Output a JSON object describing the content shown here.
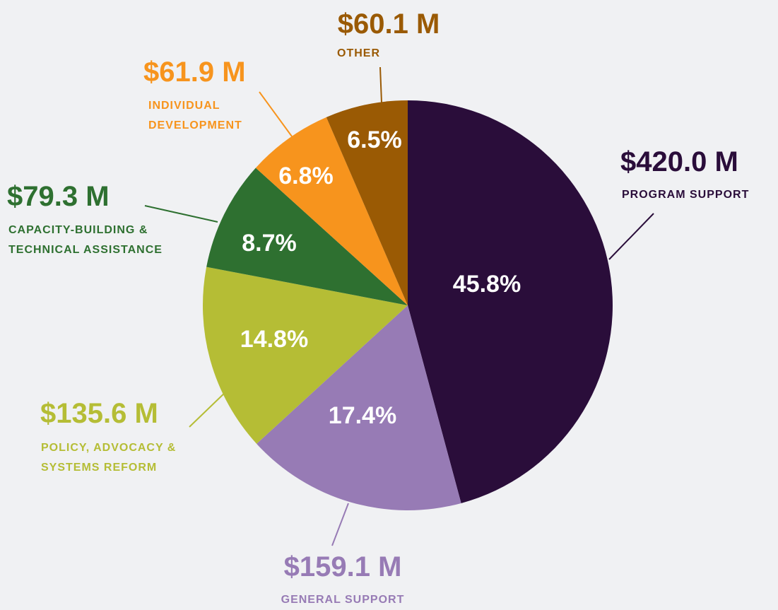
{
  "chart_data": {
    "type": "pie",
    "categories": [
      "PROGRAM SUPPORT",
      "GENERAL SUPPORT",
      "POLICY, ADVOCACY & SYSTEMS REFORM",
      "CAPACITY-BUILDING & TECHNICAL ASSISTANCE",
      "INDIVIDUAL DEVELOPMENT",
      "OTHER"
    ],
    "values": [
      45.8,
      17.4,
      14.8,
      8.7,
      6.8,
      6.5
    ],
    "value_labels": [
      "45.8%",
      "17.4%",
      "14.8%",
      "8.7%",
      "6.8%",
      "6.5%"
    ],
    "amounts": [
      "$420.0 M",
      "$159.1 M",
      "$135.6 M",
      "$79.3 M",
      "$61.9 M",
      "$60.1 M"
    ],
    "colors": [
      "#2a0d3a",
      "#977bb5",
      "#b5bd35",
      "#2e7030",
      "#f7941d",
      "#9a5a04"
    ]
  }
}
